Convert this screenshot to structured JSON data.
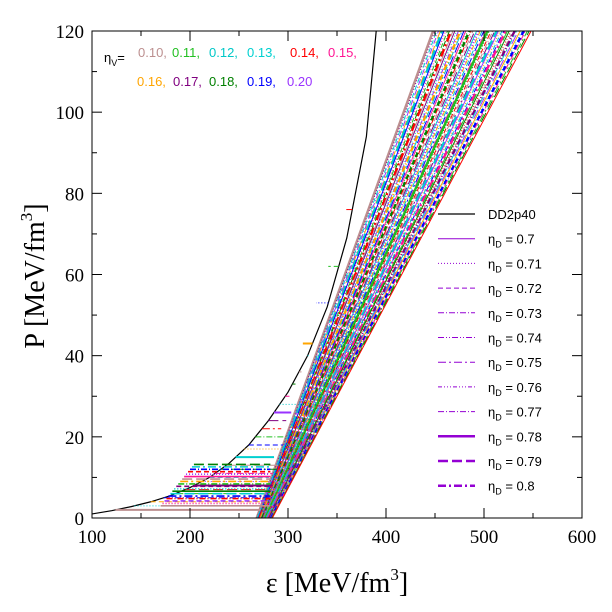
{
  "chart_data": {
    "type": "line",
    "xlabel": "ε [MeV/fm3]",
    "ylabel": "P [MeV/fm3]",
    "xlabel_main": "ε [MeV/fm",
    "ylabel_main": "P [MeV/fm",
    "axis_unit_exp": "3",
    "axis_unit_close": "]",
    "xlim": [
      100,
      600
    ],
    "ylim": [
      0,
      120
    ],
    "xticks": [
      100,
      200,
      300,
      400,
      500,
      600
    ],
    "yticks": [
      0,
      20,
      40,
      60,
      80,
      100,
      120
    ],
    "grid": false,
    "legend_position": "right",
    "eta_v_label": {
      "symbol": "η",
      "sub": "V",
      "suffix": "=",
      "rows": [
        [
          {
            "text": "0.10,",
            "color": "#bc8f8f"
          },
          {
            "text": "0.11,",
            "color": "#22c022"
          },
          {
            "text": "0.12,",
            "color": "#00c8c8"
          },
          {
            "text": "0.13,",
            "color": "#00d0d0"
          },
          {
            "text": "0.14,",
            "color": "#ff0000"
          },
          {
            "text": "0.15,",
            "color": "#ff1493"
          }
        ],
        [
          {
            "text": "0.16,",
            "color": "#ffa500"
          },
          {
            "text": "0.17,",
            "color": "#800080"
          },
          {
            "text": "0.18,",
            "color": "#008000"
          },
          {
            "text": "0.19,",
            "color": "#0000ff"
          },
          {
            "text": "0.20",
            "color": "#9933ff"
          }
        ]
      ]
    },
    "legend": [
      {
        "name": "DD2p40",
        "sym": "",
        "sub": "",
        "val": "",
        "color": "#000000",
        "dash": "",
        "width": 1.2
      },
      {
        "name": "",
        "sym": "η",
        "sub": "D",
        "val": " = 0.7",
        "color": "#9400d3",
        "dash": "",
        "width": 1.0
      },
      {
        "name": "",
        "sym": "η",
        "sub": "D",
        "val": " = 0.71",
        "color": "#9400d3",
        "dash": "1,2",
        "width": 1.0
      },
      {
        "name": "",
        "sym": "η",
        "sub": "D",
        "val": " = 0.72",
        "color": "#9400d3",
        "dash": "5,3",
        "width": 1.0
      },
      {
        "name": "",
        "sym": "η",
        "sub": "D",
        "val": " = 0.73",
        "color": "#9400d3",
        "dash": "6,2,1,2",
        "width": 1.0
      },
      {
        "name": "",
        "sym": "η",
        "sub": "D",
        "val": " = 0.74",
        "color": "#9400d3",
        "dash": "6,2,1,2,1,2",
        "width": 1.0
      },
      {
        "name": "",
        "sym": "η",
        "sub": "D",
        "val": " = 0.75",
        "color": "#9400d3",
        "dash": "8,3,2,3",
        "width": 1.0
      },
      {
        "name": "",
        "sym": "η",
        "sub": "D",
        "val": " = 0.76",
        "color": "#9400d3",
        "dash": "4,2,1,2,1,2,1,2",
        "width": 1.0
      },
      {
        "name": "",
        "sym": "η",
        "sub": "D",
        "val": " = 0.77",
        "color": "#9400d3",
        "dash": "6,2,1,2",
        "width": 1.0
      },
      {
        "name": "",
        "sym": "η",
        "sub": "D",
        "val": " = 0.78",
        "color": "#9400d3",
        "dash": "",
        "width": 2.5
      },
      {
        "name": "",
        "sym": "η",
        "sub": "D",
        "val": " = 0.79",
        "color": "#9400d3",
        "dash": "10,4",
        "width": 2.5
      },
      {
        "name": "",
        "sym": "η",
        "sub": "D",
        "val": " = 0.8",
        "color": "#9400d3",
        "dash": "8,3,2,3",
        "width": 2.5
      }
    ],
    "series": [
      {
        "name": "DD2p40",
        "color": "#000000",
        "x": [
          100,
          120,
          140,
          160,
          180,
          200,
          220,
          240,
          260,
          280,
          300,
          320,
          340,
          360,
          380,
          390
        ],
        "y": [
          1,
          1.8,
          2.8,
          4.0,
          5.5,
          7.5,
          10,
          13.5,
          18,
          24,
          31,
          40,
          52,
          69,
          94,
          120
        ]
      }
    ]
  }
}
